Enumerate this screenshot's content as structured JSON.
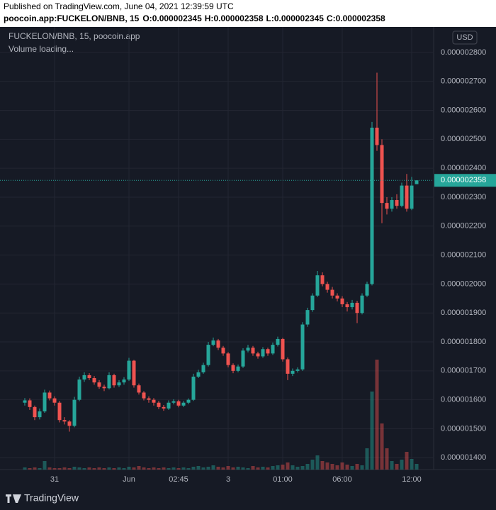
{
  "header": {
    "published": "Published on TradingView.com, June 04, 2021 12:39:59 UTC",
    "symbol": "poocoin.app:FUCKELON/BNB, 15",
    "ohlc": [
      {
        "label": "O:",
        "value": "0.000002345"
      },
      {
        "label": "H:",
        "value": "0.000002358"
      },
      {
        "label": "L:",
        "value": "0.000002345"
      },
      {
        "label": "C:",
        "value": "0.000002358"
      }
    ]
  },
  "chart_data": {
    "type": "candlestick",
    "legend": "FUCKELON/BNB, 15, poocoin.app",
    "volume_status": "Volume loading...",
    "currency": "USD",
    "up_color": "#26a69a",
    "down_color": "#ef5350",
    "grid": true,
    "last_price": {
      "value": 2.358e-06,
      "label": "0.000002358"
    },
    "ylim": [
      1.359e-06,
      2.883e-06
    ],
    "yticks": [
      {
        "value": 1.4e-06,
        "label": "0.000001400"
      },
      {
        "value": 1.5e-06,
        "label": "0.000001500"
      },
      {
        "value": 1.6e-06,
        "label": "0.000001600"
      },
      {
        "value": 1.7e-06,
        "label": "0.000001700"
      },
      {
        "value": 1.8e-06,
        "label": "0.000001800"
      },
      {
        "value": 1.9e-06,
        "label": "0.000001900"
      },
      {
        "value": 2e-06,
        "label": "0.000002000"
      },
      {
        "value": 2.1e-06,
        "label": "0.000002100"
      },
      {
        "value": 2.2e-06,
        "label": "0.000002200"
      },
      {
        "value": 2.3e-06,
        "label": "0.000002300"
      },
      {
        "value": 2.4e-06,
        "label": "0.000002400"
      },
      {
        "value": 2.5e-06,
        "label": "0.000002500"
      },
      {
        "value": 2.6e-06,
        "label": "0.000002600"
      },
      {
        "value": 2.7e-06,
        "label": "0.000002700"
      },
      {
        "value": 2.8e-06,
        "label": "0.000002800"
      }
    ],
    "xlim": [
      -1,
      82
    ],
    "xticks": [
      {
        "value": 6,
        "label": "31"
      },
      {
        "value": 21,
        "label": "Jun"
      },
      {
        "value": 31,
        "label": "02:45"
      },
      {
        "value": 41,
        "label": "3"
      },
      {
        "value": 52,
        "label": "01:00"
      },
      {
        "value": 64,
        "label": "06:00"
      },
      {
        "value": 78,
        "label": "12:00"
      }
    ],
    "open": [
      1.59e-06,
      1.598e-06,
      1.575e-06,
      1.54e-06,
      1.56e-06,
      1.625e-06,
      1.605e-06,
      1.59e-06,
      1.53e-06,
      1.525e-06,
      1.51e-06,
      1.6e-06,
      1.67e-06,
      1.685e-06,
      1.675e-06,
      1.66e-06,
      1.645e-06,
      1.64e-06,
      1.685e-06,
      1.65e-06,
      1.66e-06,
      1.67e-06,
      1.735e-06,
      1.65e-06,
      1.625e-06,
      1.605e-06,
      1.6e-06,
      1.59e-06,
      1.575e-06,
      1.57e-06,
      1.59e-06,
      1.595e-06,
      1.58e-06,
      1.59e-06,
      1.6e-06,
      1.68e-06,
      1.695e-06,
      1.72e-06,
      1.79e-06,
      1.805e-06,
      1.78e-06,
      1.76e-06,
      1.72e-06,
      1.7e-06,
      1.715e-06,
      1.77e-06,
      1.78e-06,
      1.76e-06,
      1.75e-06,
      1.775e-06,
      1.76e-06,
      1.79e-06,
      1.81e-06,
      1.74e-06,
      1.69e-06,
      1.7e-06,
      1.705e-06,
      1.86e-06,
      1.91e-06,
      1.96e-06,
      2.03e-06,
      2e-06,
      1.98e-06,
      1.96e-06,
      1.95e-06,
      1.93e-06,
      1.92e-06,
      1.935e-06,
      1.9e-06,
      1.96e-06,
      2e-06,
      2.54e-06,
      2.48e-06,
      2.28e-06,
      2.26e-06,
      2.29e-06,
      2.27e-06,
      2.34e-06,
      2.26e-06,
      2.345e-06
    ],
    "high": [
      1.606e-06,
      1.605e-06,
      1.58e-06,
      1.57e-06,
      1.635e-06,
      1.632e-06,
      1.612e-06,
      1.596e-06,
      1.54e-06,
      1.53e-06,
      1.61e-06,
      1.68e-06,
      1.695e-06,
      1.692e-06,
      1.682e-06,
      1.668e-06,
      1.652e-06,
      1.695e-06,
      1.69e-06,
      1.668e-06,
      1.678e-06,
      1.745e-06,
      1.738e-06,
      1.656e-06,
      1.63e-06,
      1.612e-06,
      1.606e-06,
      1.596e-06,
      1.582e-06,
      1.598e-06,
      1.602e-06,
      1.6e-06,
      1.596e-06,
      1.605e-06,
      1.69e-06,
      1.704e-06,
      1.728e-06,
      1.8e-06,
      1.815e-06,
      1.81e-06,
      1.786e-06,
      1.765e-06,
      1.726e-06,
      1.722e-06,
      1.778e-06,
      1.79e-06,
      1.786e-06,
      1.766e-06,
      1.782e-06,
      1.78e-06,
      1.798e-06,
      1.818e-06,
      1.814e-06,
      1.746e-06,
      1.708e-06,
      1.712e-06,
      1.868e-06,
      1.918e-06,
      1.968e-06,
      2.045e-06,
      2.04e-06,
      2.008e-06,
      1.99e-06,
      1.968e-06,
      1.958e-06,
      1.938e-06,
      1.945e-06,
      1.942e-06,
      1.968e-06,
      2.008e-06,
      2.56e-06,
      2.73e-06,
      2.5e-06,
      2.3e-06,
      2.3e-06,
      2.31e-06,
      2.35e-06,
      2.38e-06,
      2.37e-06,
      2.358e-06
    ],
    "low": [
      1.58e-06,
      1.565e-06,
      1.53e-06,
      1.532e-06,
      1.555e-06,
      1.598e-06,
      1.58e-06,
      1.522e-06,
      1.515e-06,
      1.49e-06,
      1.505e-06,
      1.595e-06,
      1.662e-06,
      1.668e-06,
      1.652e-06,
      1.638e-06,
      1.63e-06,
      1.636e-06,
      1.642e-06,
      1.644e-06,
      1.652e-06,
      1.665e-06,
      1.642e-06,
      1.618e-06,
      1.598e-06,
      1.59e-06,
      1.58e-06,
      1.568e-06,
      1.562e-06,
      1.565e-06,
      1.584e-06,
      1.574e-06,
      1.575e-06,
      1.585e-06,
      1.596e-06,
      1.675e-06,
      1.69e-06,
      1.715e-06,
      1.785e-06,
      1.772e-06,
      1.752e-06,
      1.712e-06,
      1.692e-06,
      1.695e-06,
      1.71e-06,
      1.764e-06,
      1.752e-06,
      1.742e-06,
      1.745e-06,
      1.752e-06,
      1.755e-06,
      1.784e-06,
      1.732e-06,
      1.668e-06,
      1.682e-06,
      1.694e-06,
      1.7e-06,
      1.852e-06,
      1.904e-06,
      1.955e-06,
      1.992e-06,
      1.97e-06,
      1.95e-06,
      1.94e-06,
      1.92e-06,
      1.905e-06,
      1.912e-06,
      1.865e-06,
      1.895e-06,
      1.955e-06,
      1.995e-06,
      2.46e-06,
      2.21e-06,
      2.24e-06,
      2.25e-06,
      2.26e-06,
      2.265e-06,
      2.25e-06,
      2.255e-06,
      2.345e-06
    ],
    "close": [
      1.598e-06,
      1.575e-06,
      1.54e-06,
      1.56e-06,
      1.625e-06,
      1.605e-06,
      1.59e-06,
      1.53e-06,
      1.525e-06,
      1.51e-06,
      1.6e-06,
      1.67e-06,
      1.685e-06,
      1.675e-06,
      1.66e-06,
      1.645e-06,
      1.64e-06,
      1.685e-06,
      1.65e-06,
      1.66e-06,
      1.67e-06,
      1.735e-06,
      1.65e-06,
      1.625e-06,
      1.605e-06,
      1.6e-06,
      1.59e-06,
      1.575e-06,
      1.57e-06,
      1.59e-06,
      1.595e-06,
      1.58e-06,
      1.59e-06,
      1.6e-06,
      1.68e-06,
      1.695e-06,
      1.72e-06,
      1.79e-06,
      1.805e-06,
      1.78e-06,
      1.76e-06,
      1.72e-06,
      1.7e-06,
      1.715e-06,
      1.77e-06,
      1.78e-06,
      1.76e-06,
      1.75e-06,
      1.775e-06,
      1.76e-06,
      1.79e-06,
      1.81e-06,
      1.74e-06,
      1.69e-06,
      1.7e-06,
      1.705e-06,
      1.86e-06,
      1.91e-06,
      1.96e-06,
      2.03e-06,
      2e-06,
      1.98e-06,
      1.96e-06,
      1.95e-06,
      1.93e-06,
      1.92e-06,
      1.935e-06,
      1.9e-06,
      1.96e-06,
      2e-06,
      2.54e-06,
      2.48e-06,
      2.28e-06,
      2.26e-06,
      2.29e-06,
      2.27e-06,
      2.34e-06,
      2.26e-06,
      2.34e-06,
      2.358e-06
    ],
    "volume": [
      3,
      2,
      3,
      2,
      12,
      3,
      2,
      2,
      3,
      2,
      4,
      3,
      2,
      3,
      2,
      3,
      2,
      3,
      2,
      3,
      2,
      4,
      3,
      5,
      3,
      2,
      3,
      2,
      3,
      2,
      3,
      2,
      3,
      2,
      4,
      5,
      3,
      4,
      6,
      4,
      3,
      5,
      3,
      4,
      3,
      2,
      5,
      3,
      4,
      3,
      5,
      6,
      7,
      10,
      6,
      4,
      5,
      8,
      14,
      20,
      12,
      10,
      8,
      6,
      10,
      7,
      5,
      8,
      6,
      30,
      110,
      155,
      65,
      30,
      12,
      8,
      14,
      25,
      15,
      8
    ]
  },
  "footer": {
    "brand": "TradingView"
  }
}
